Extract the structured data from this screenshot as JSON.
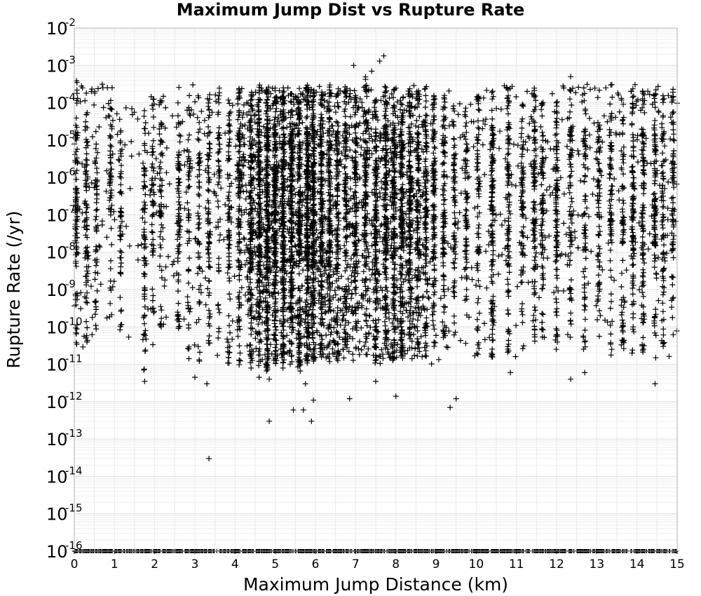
{
  "chart_data": {
    "type": "scatter",
    "title": "Maximum Jump Dist vs Rupture Rate",
    "xlabel": "Maximum Jump Distance (km)",
    "ylabel": "Rupture Rate (/yr)",
    "xlim": [
      0,
      15
    ],
    "ylim": [
      1e-16,
      0.01
    ],
    "y_scale": "log",
    "grid": true,
    "marker": "plus",
    "marker_color": "#000000",
    "x_ticks": [
      "0",
      "1",
      "2",
      "3",
      "4",
      "5",
      "6",
      "7",
      "8",
      "9",
      "10",
      "11",
      "12",
      "13",
      "14",
      "15"
    ],
    "y_ticks": [
      {
        "base": "10",
        "exp": "-2"
      },
      {
        "base": "10",
        "exp": "-3"
      },
      {
        "base": "10",
        "exp": "-4"
      },
      {
        "base": "10",
        "exp": "-5"
      },
      {
        "base": "10",
        "exp": "-6"
      },
      {
        "base": "10",
        "exp": "-7"
      },
      {
        "base": "10",
        "exp": "-8"
      },
      {
        "base": "10",
        "exp": "-9"
      },
      {
        "base": "10",
        "exp": "-10"
      },
      {
        "base": "10",
        "exp": "-11"
      },
      {
        "base": "10",
        "exp": "-12"
      },
      {
        "base": "10",
        "exp": "-13"
      },
      {
        "base": "10",
        "exp": "-14"
      },
      {
        "base": "10",
        "exp": "-15"
      },
      {
        "base": "10",
        "exp": "-16"
      }
    ],
    "columns": [
      0.05,
      0.3,
      0.55,
      0.9,
      1.15,
      1.75,
      1.95,
      2.15,
      2.6,
      2.85,
      3.1,
      3.35,
      3.6,
      3.85,
      4.1,
      4.4,
      4.6,
      4.8,
      5.0,
      5.2,
      5.4,
      5.6,
      5.8,
      5.95,
      6.15,
      6.35,
      6.55,
      6.75,
      7.0,
      7.25,
      7.5,
      7.75,
      7.95,
      8.15,
      8.35,
      8.55,
      8.75,
      8.95,
      9.2,
      9.45,
      9.75,
      10.05,
      10.4,
      10.8,
      11.15,
      11.45,
      11.65,
      12.0,
      12.35,
      12.7,
      13.05,
      13.35,
      13.65,
      13.9,
      14.15,
      14.45,
      14.65,
      14.9
    ],
    "column_weights": [
      4,
      3,
      2,
      2,
      2,
      3,
      2,
      2,
      3,
      2,
      2,
      3,
      2,
      3,
      4,
      6,
      7,
      9,
      8,
      8,
      8,
      7,
      9,
      8,
      6,
      5,
      4,
      4,
      4,
      4,
      5,
      6,
      6,
      6,
      5,
      4,
      4,
      5,
      4,
      3,
      3,
      3,
      5,
      4,
      3,
      4,
      3,
      4,
      3,
      3,
      3,
      3,
      3,
      4,
      4,
      4,
      3,
      3
    ],
    "column_y_range": [
      [
        -10.8,
        -3.4
      ],
      [
        -10.6,
        -3.7
      ],
      [
        -10.2,
        -4.2
      ],
      [
        -10.5,
        -3.5
      ],
      [
        -10.3,
        -4.4
      ],
      [
        -11.3,
        -4.1
      ],
      [
        -10.7,
        -3.6
      ],
      [
        -10.3,
        -3.8
      ],
      [
        -10.0,
        -4.3
      ],
      [
        -10.9,
        -3.9
      ],
      [
        -11.1,
        -3.8
      ],
      [
        -10.6,
        -3.7
      ],
      [
        -10.3,
        -3.6
      ],
      [
        -11.0,
        -3.8
      ],
      [
        -11.1,
        -3.5
      ],
      [
        -11.2,
        -3.6
      ],
      [
        -11.1,
        -3.5
      ],
      [
        -11.2,
        -3.6
      ],
      [
        -11.0,
        -3.6
      ],
      [
        -11.1,
        -3.5
      ],
      [
        -11.0,
        -3.7
      ],
      [
        -11.2,
        -3.6
      ],
      [
        -11.1,
        -3.5
      ],
      [
        -11.0,
        -3.6
      ],
      [
        -10.9,
        -3.6
      ],
      [
        -10.9,
        -3.5
      ],
      [
        -11.0,
        -3.7
      ],
      [
        -10.5,
        -3.6
      ],
      [
        -10.6,
        -3.5
      ],
      [
        -10.4,
        -3.3
      ],
      [
        -10.9,
        -3.6
      ],
      [
        -10.7,
        -3.5
      ],
      [
        -10.9,
        -3.6
      ],
      [
        -10.8,
        -3.7
      ],
      [
        -10.5,
        -3.6
      ],
      [
        -10.6,
        -3.6
      ],
      [
        -10.8,
        -3.5
      ],
      [
        -10.6,
        -3.7
      ],
      [
        -10.5,
        -3.7
      ],
      [
        -10.3,
        -3.8
      ],
      [
        -10.5,
        -3.7
      ],
      [
        -10.9,
        -3.8
      ],
      [
        -10.9,
        -3.6
      ],
      [
        -10.7,
        -3.5
      ],
      [
        -10.6,
        -3.7
      ],
      [
        -10.4,
        -3.6
      ],
      [
        -10.4,
        -3.7
      ],
      [
        -10.6,
        -3.8
      ],
      [
        -10.4,
        -3.6
      ],
      [
        -10.6,
        -3.7
      ],
      [
        -10.8,
        -3.6
      ],
      [
        -10.9,
        -3.7
      ],
      [
        -10.6,
        -3.7
      ],
      [
        -11.0,
        -3.6
      ],
      [
        -10.8,
        -3.6
      ],
      [
        -10.5,
        -3.7
      ],
      [
        -10.6,
        -3.7
      ],
      [
        -10.4,
        -3.5
      ]
    ],
    "outliers": [
      {
        "x": 7.7,
        "y": 0.0018
      },
      {
        "x": 7.6,
        "y": 0.0013
      },
      {
        "x": 6.95,
        "y": 0.001
      },
      {
        "x": 7.4,
        "y": 0.0007
      },
      {
        "x": 12.35,
        "y": 0.0005
      },
      {
        "x": 13.35,
        "y": 0.0003
      },
      {
        "x": 3.35,
        "y": 3e-14
      },
      {
        "x": 4.85,
        "y": 3e-13
      },
      {
        "x": 5.9,
        "y": 3e-13
      },
      {
        "x": 5.45,
        "y": 6e-13
      },
      {
        "x": 5.7,
        "y": 6e-13
      },
      {
        "x": 5.95,
        "y": 1.1e-12
      },
      {
        "x": 6.85,
        "y": 1.2e-12
      },
      {
        "x": 8.0,
        "y": 1.4e-12
      },
      {
        "x": 9.35,
        "y": 7e-13
      },
      {
        "x": 9.5,
        "y": 1.2e-12
      },
      {
        "x": 5.75,
        "y": 3e-12
      },
      {
        "x": 3.3,
        "y": 3e-12
      },
      {
        "x": 1.75,
        "y": 3.5e-12
      },
      {
        "x": 3.0,
        "y": 4.5e-12
      },
      {
        "x": 14.45,
        "y": 3e-12
      },
      {
        "x": 12.35,
        "y": 4e-12
      },
      {
        "x": 12.7,
        "y": 6e-12
      },
      {
        "x": 10.85,
        "y": 6e-12
      },
      {
        "x": 7.5,
        "y": 3.5e-12
      },
      {
        "x": 4.6,
        "y": 4.5e-12
      },
      {
        "x": 4.85,
        "y": 4e-12
      }
    ],
    "floor_value": 1e-16
  }
}
